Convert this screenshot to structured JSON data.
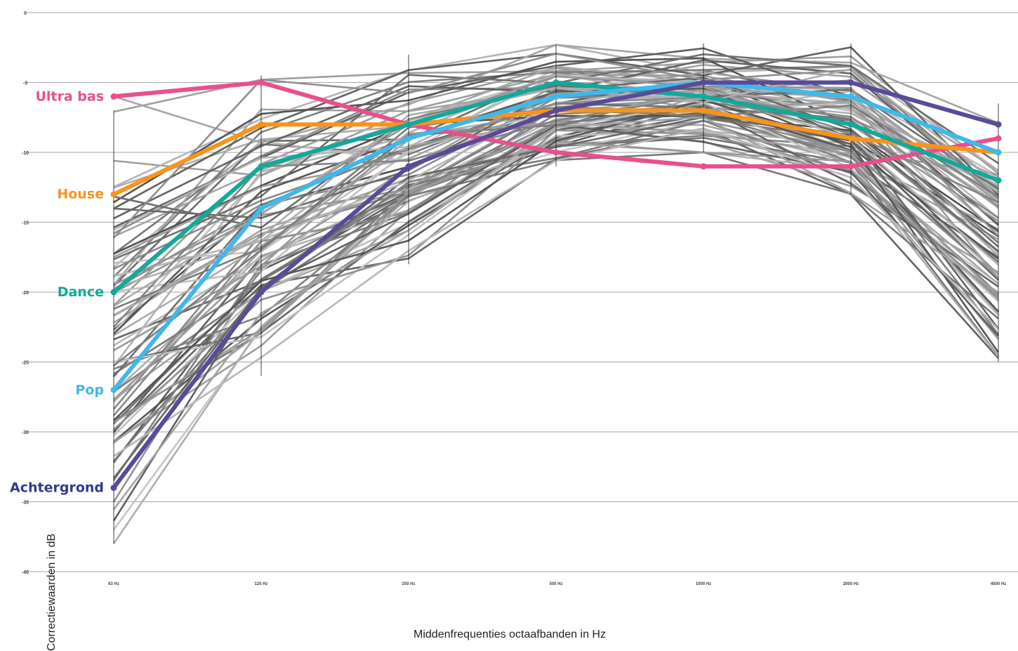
{
  "chart_data": {
    "type": "line",
    "xlabel": "Middenfrequenties octaafbanden in Hz",
    "ylabel": "Correctiewaarden in dB",
    "categories": [
      "63 Hz",
      "125 Hz",
      "250 Hz",
      "500 Hz",
      "1000 Hz",
      "2000 Hz",
      "4000 Hz"
    ],
    "ylim": [
      -40,
      0
    ],
    "yticks": [
      "0",
      "-5",
      "-10",
      "-15",
      "-20",
      "-25",
      "-30",
      "-35",
      "-40"
    ],
    "grid": true,
    "series": [
      {
        "name": "Ultra bas",
        "color": "#e8508c",
        "values": [
          -6,
          -5,
          -8,
          -10,
          -11,
          -11,
          -9
        ]
      },
      {
        "name": "House",
        "color": "#f7941d",
        "values": [
          -13,
          -8,
          -8,
          -7,
          -7,
          -9,
          -10
        ]
      },
      {
        "name": "Dance",
        "color": "#14a89a",
        "values": [
          -20,
          -11,
          -8,
          -5,
          -6,
          -8,
          -12
        ]
      },
      {
        "name": "Pop",
        "color": "#3fb8ea",
        "values": [
          -27,
          -14,
          -9,
          -6,
          -5,
          -6,
          -10
        ]
      },
      {
        "name": "Achtergrond",
        "color": "#5a4a9a",
        "values": [
          -34,
          -20,
          -11,
          -7,
          -5,
          -5,
          -8
        ]
      }
    ],
    "label_colors": {
      "Achtergrond": "#2e3c8c"
    },
    "background_series_count": 80
  }
}
